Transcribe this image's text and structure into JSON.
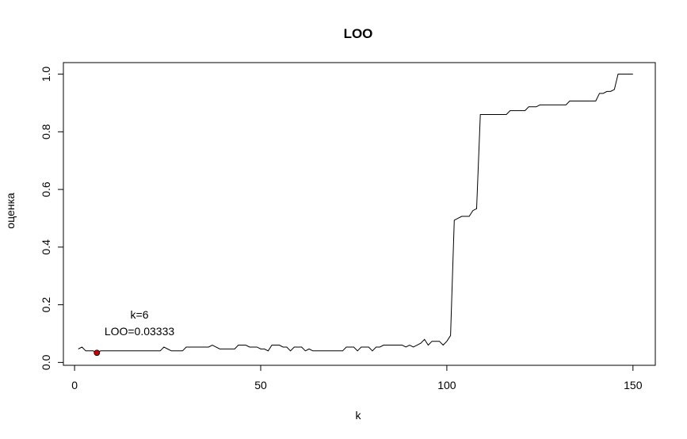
{
  "chart_data": {
    "type": "line",
    "title": "LOO",
    "xlabel": "k",
    "ylabel": "оценка",
    "xlim": [
      -3,
      156
    ],
    "ylim": [
      -0.01,
      1.04
    ],
    "xticks": [
      0,
      50,
      100,
      150
    ],
    "yticks": [
      0.0,
      0.2,
      0.4,
      0.6,
      0.8,
      1.0
    ],
    "xtick_labels": [
      "0",
      "50",
      "100",
      "150"
    ],
    "ytick_labels": [
      "0.0",
      "0.2",
      "0.4",
      "0.6",
      "0.8",
      "1.0"
    ],
    "grid": false,
    "legend": "none",
    "line_color": "#000000",
    "series": [
      {
        "x": [
          1,
          2,
          3,
          4,
          5,
          6,
          7,
          8,
          9,
          10,
          11,
          12,
          13,
          14,
          15,
          16,
          17,
          18,
          19,
          20,
          21,
          22,
          23,
          24,
          25,
          26,
          27,
          28,
          29,
          30,
          31,
          32,
          33,
          34,
          35,
          36,
          37,
          38,
          39,
          40,
          41,
          42,
          43,
          44,
          45,
          46,
          47,
          48,
          49,
          50,
          51,
          52,
          53,
          54,
          55,
          56,
          57,
          58,
          59,
          60,
          61,
          62,
          63,
          64,
          65,
          66,
          67,
          68,
          69,
          70,
          71,
          72,
          73,
          74,
          75,
          76,
          77,
          78,
          79,
          80,
          81,
          82,
          83,
          84,
          85,
          86,
          87,
          88,
          89,
          90,
          91,
          92,
          93,
          94,
          95,
          96,
          97,
          98,
          99,
          100,
          101,
          102,
          103,
          104,
          105,
          106,
          107,
          108,
          109,
          110,
          111,
          112,
          113,
          114,
          115,
          116,
          117,
          118,
          119,
          120,
          121,
          122,
          123,
          124,
          125,
          126,
          127,
          128,
          129,
          130,
          131,
          132,
          133,
          134,
          135,
          136,
          137,
          138,
          139,
          140,
          141,
          142,
          143,
          144,
          145,
          146,
          147,
          148,
          149,
          150
        ],
        "y": [
          0.0467,
          0.0533,
          0.04,
          0.04,
          0.04,
          0.0333,
          0.04,
          0.04,
          0.04,
          0.04,
          0.04,
          0.04,
          0.04,
          0.04,
          0.04,
          0.04,
          0.04,
          0.04,
          0.04,
          0.04,
          0.04,
          0.04,
          0.04,
          0.0533,
          0.0467,
          0.04,
          0.04,
          0.04,
          0.04,
          0.0533,
          0.0533,
          0.0533,
          0.0533,
          0.0533,
          0.0533,
          0.0533,
          0.06,
          0.0533,
          0.0467,
          0.0467,
          0.0467,
          0.0467,
          0.0467,
          0.06,
          0.06,
          0.06,
          0.0533,
          0.0533,
          0.0533,
          0.0467,
          0.0467,
          0.04,
          0.06,
          0.06,
          0.06,
          0.0533,
          0.0533,
          0.04,
          0.0533,
          0.0533,
          0.0533,
          0.04,
          0.0467,
          0.04,
          0.04,
          0.04,
          0.04,
          0.04,
          0.04,
          0.04,
          0.04,
          0.04,
          0.0533,
          0.0533,
          0.0533,
          0.04,
          0.0533,
          0.0533,
          0.0533,
          0.04,
          0.0533,
          0.0533,
          0.06,
          0.06,
          0.06,
          0.06,
          0.06,
          0.06,
          0.0533,
          0.06,
          0.0533,
          0.06,
          0.0667,
          0.08,
          0.06,
          0.0733,
          0.0733,
          0.0733,
          0.06,
          0.0733,
          0.0933,
          0.4933,
          0.5,
          0.5067,
          0.5067,
          0.5067,
          0.5267,
          0.5333,
          0.86,
          0.86,
          0.86,
          0.86,
          0.86,
          0.86,
          0.86,
          0.86,
          0.8733,
          0.8733,
          0.8733,
          0.8733,
          0.8733,
          0.8867,
          0.8867,
          0.8867,
          0.8933,
          0.8933,
          0.8933,
          0.8933,
          0.8933,
          0.8933,
          0.8933,
          0.8933,
          0.9067,
          0.9067,
          0.9067,
          0.9067,
          0.9067,
          0.9067,
          0.9067,
          0.9067,
          0.9333,
          0.9333,
          0.94,
          0.94,
          0.9467,
          1.0,
          1.0,
          1.0,
          1.0,
          1.0
        ]
      }
    ],
    "highlight": {
      "x": 6,
      "y": 0.0333,
      "color": "#cc0000",
      "label_line1": "k=6",
      "label_line2": "LOO=0.03333"
    }
  }
}
